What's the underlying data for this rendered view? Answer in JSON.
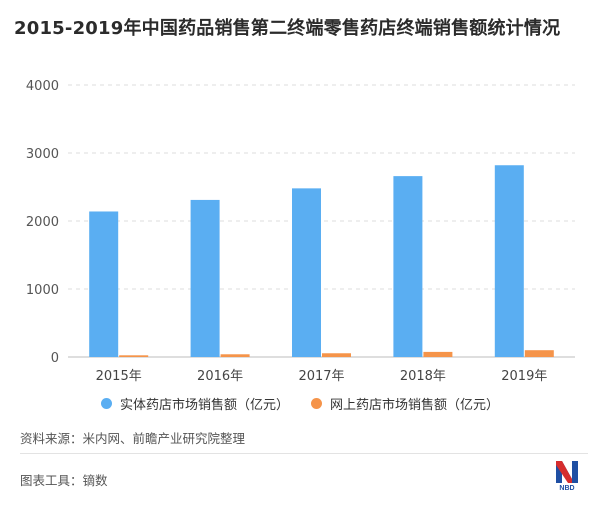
{
  "title": "2015-2019年中国药品销售第二终端零售药店终端销售额统计情况",
  "chart_data": {
    "type": "bar",
    "categories": [
      "2015年",
      "2016年",
      "2017年",
      "2018年",
      "2019年"
    ],
    "series": [
      {
        "name": "实体药店市场销售额（亿元）",
        "values": [
          2140,
          2310,
          2480,
          2660,
          2820
        ],
        "color": "#5aaef2"
      },
      {
        "name": "网上药店市场销售额（亿元）",
        "values": [
          25,
          40,
          55,
          75,
          100
        ],
        "color": "#f5944a"
      }
    ],
    "yticks": [
      "0",
      "1000",
      "2000",
      "3000",
      "4000"
    ],
    "ylim": [
      0,
      4000
    ],
    "grid": true,
    "legend_position": "bottom"
  },
  "footer": {
    "source": "资料来源：米内网、前瞻产业研究院整理",
    "tool": "图表工具：镝数",
    "logo_text": "NBD"
  }
}
